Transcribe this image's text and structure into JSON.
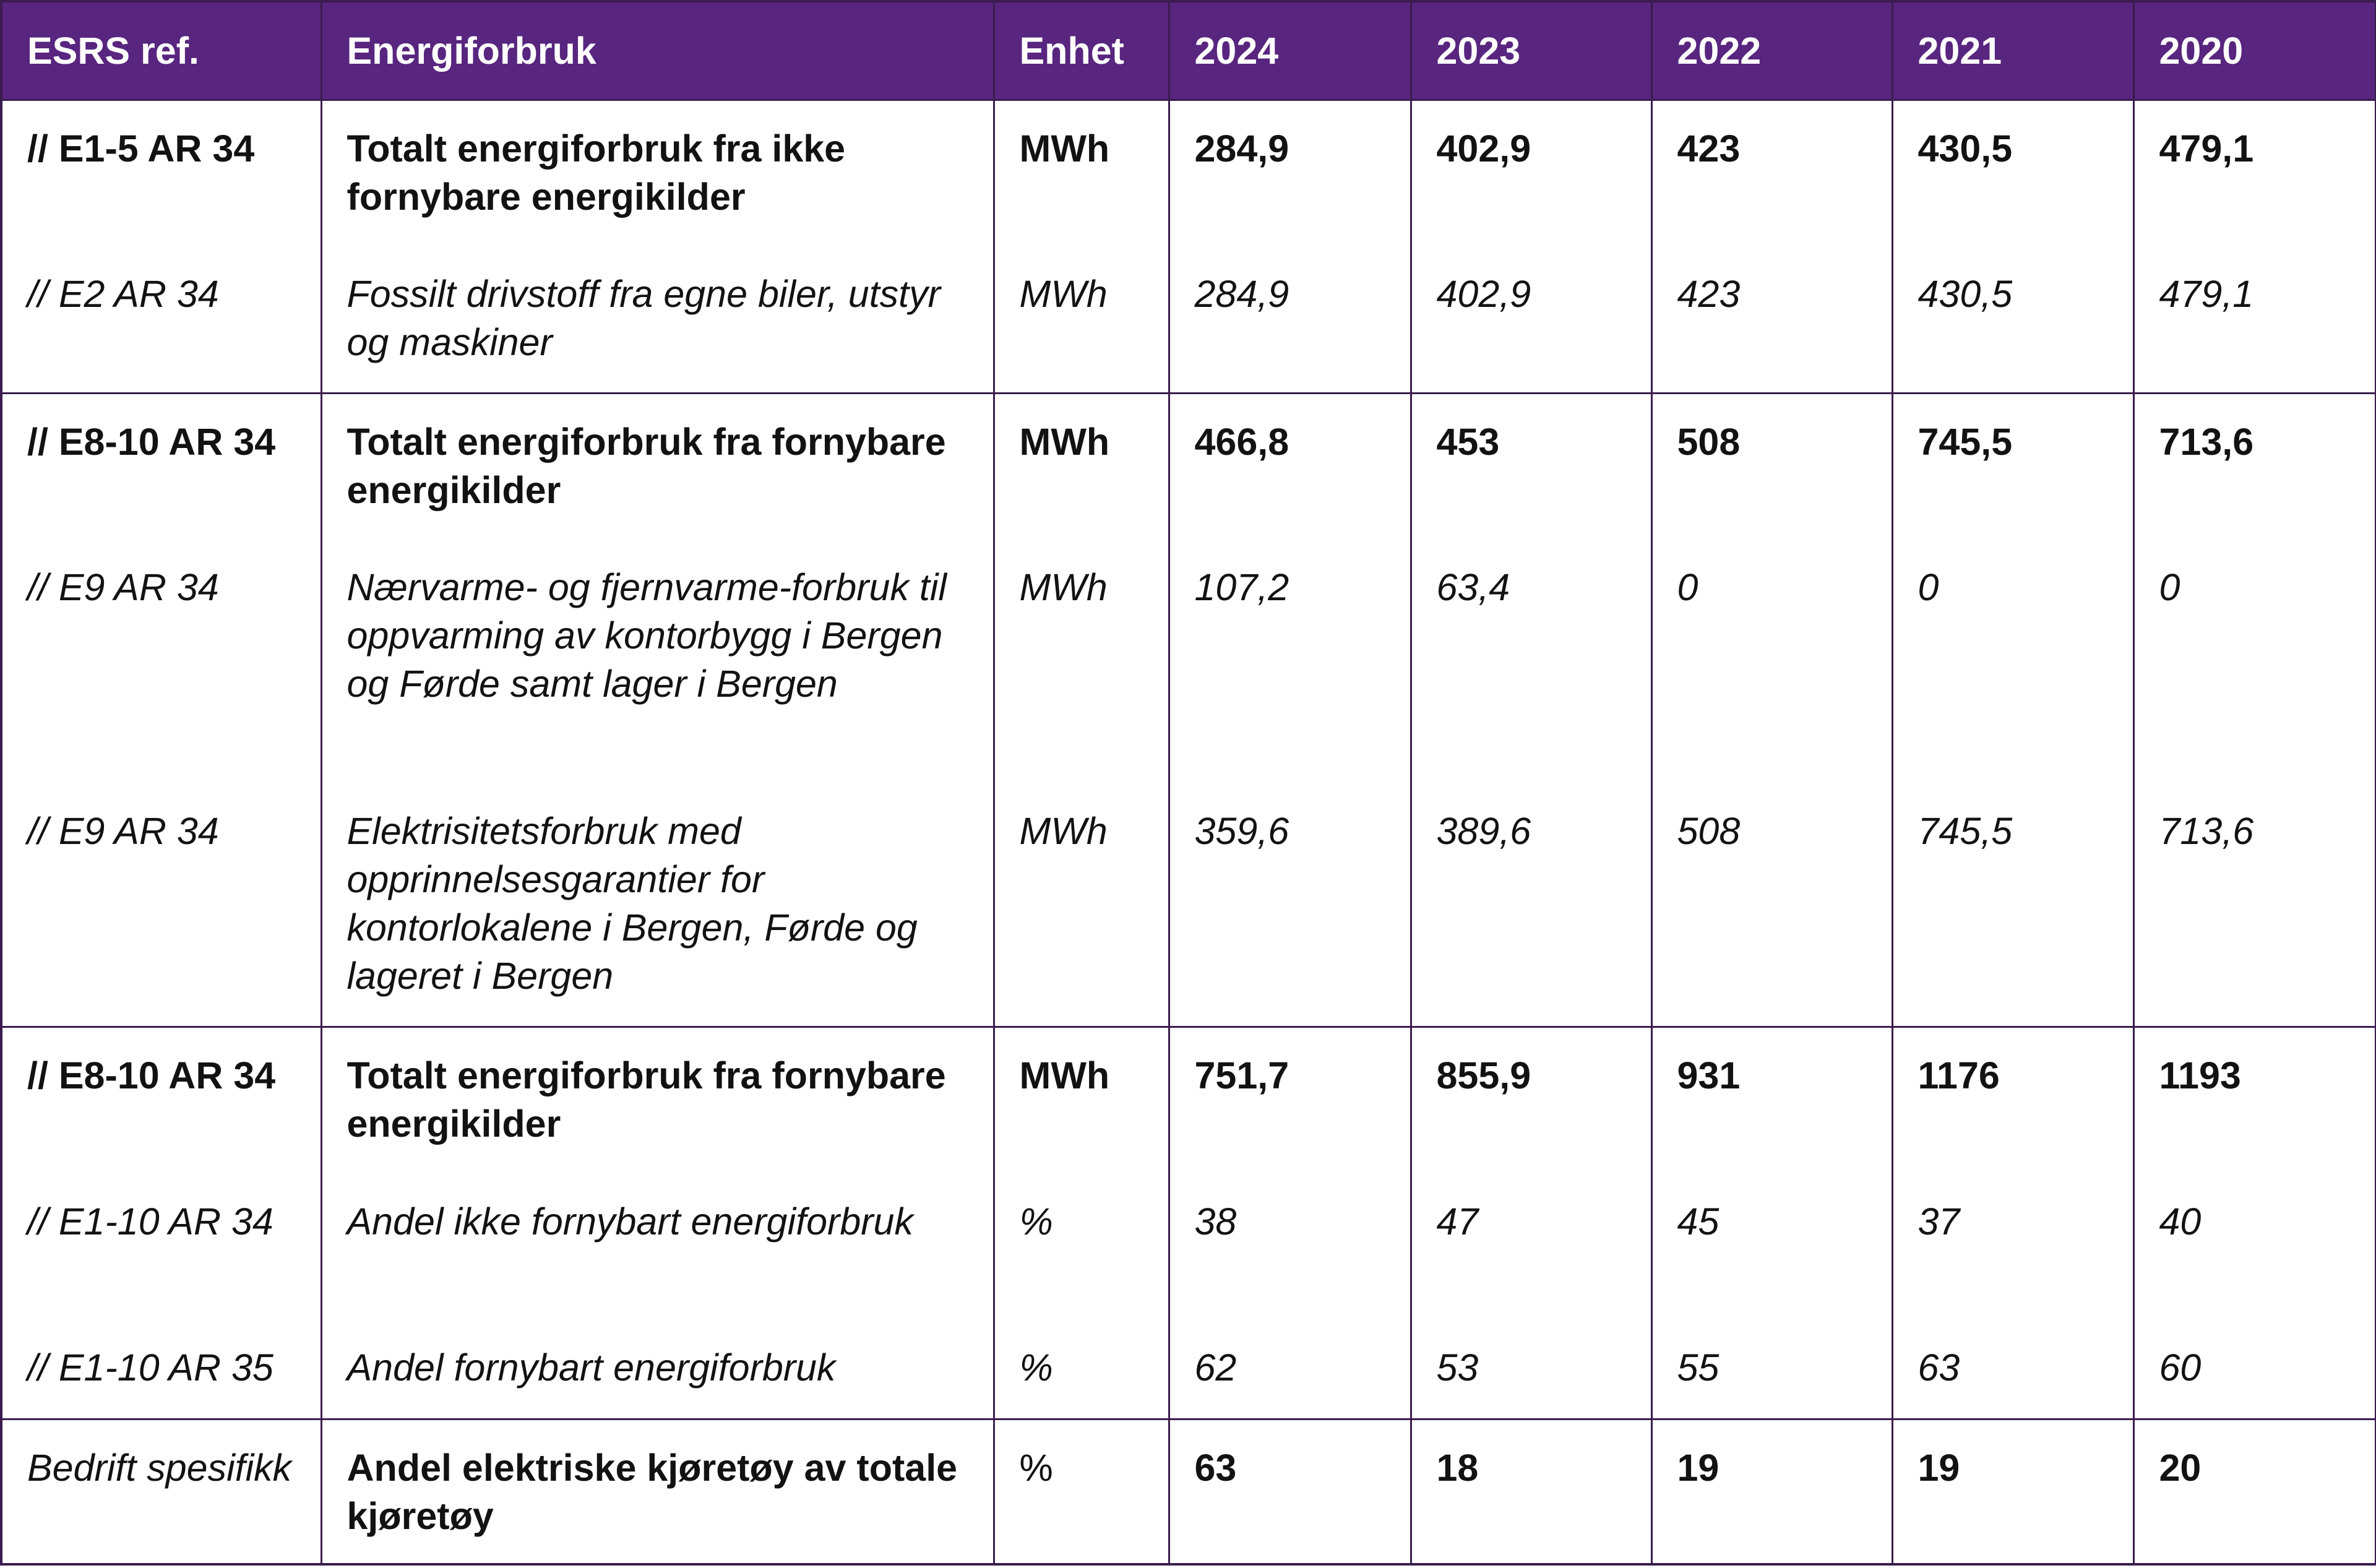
{
  "table": {
    "headers": [
      "ESRS ref.",
      "Energiforbruk",
      "Enhet",
      "2024",
      "2023",
      "2022",
      "2021",
      "2020"
    ],
    "rows": [
      {
        "ref": "// E1-5 AR 34",
        "label": "Totalt energiforbruk fra ikke fornybare energikilder",
        "unit": "MWh",
        "values": [
          "284,9",
          "402,9",
          "423",
          "430,5",
          "479,1"
        ],
        "style": "bold",
        "group_start": true
      },
      {
        "ref": "// E2 AR 34",
        "label": "Fossilt drivstoff fra egne biler, utstyr og maskiner",
        "unit": "MWh",
        "values": [
          "284,9",
          "402,9",
          "423",
          "430,5",
          "479,1"
        ],
        "style": "italic",
        "group_start": false
      },
      {
        "ref": "// E8-10 AR 34",
        "label": "Totalt energiforbruk fra fornybare energikilder",
        "unit": "MWh",
        "values": [
          "466,8",
          "453",
          "508",
          "745,5",
          "713,6"
        ],
        "style": "bold",
        "group_start": true
      },
      {
        "ref": "// E9 AR 34",
        "label": "Nærvarme- og fjernvarme-forbruk til oppvarming av kontorbygg i Bergen og Førde samt lager i Bergen",
        "unit": "MWh",
        "values": [
          "107,2",
          "63,4",
          "0",
          "0",
          "0"
        ],
        "style": "italic",
        "group_start": false
      },
      {
        "ref": "// E9 AR 34",
        "label": "Elektrisitetsforbruk med opprinnelsesgarantier for kontorlokalene i Bergen, Førde og lageret i Bergen",
        "unit": "MWh",
        "values": [
          "359,6",
          "389,6",
          "508",
          "745,5",
          "713,6"
        ],
        "style": "italic",
        "group_start": false
      },
      {
        "ref": "// E8-10 AR 34",
        "label": "Totalt energiforbruk fra fornybare energikilder",
        "unit": "MWh",
        "values": [
          "751,7",
          "855,9",
          "931",
          "1176",
          "1193"
        ],
        "style": "bold",
        "group_start": true
      },
      {
        "ref": "// E1-10 AR 34",
        "label": "Andel ikke fornybart energiforbruk",
        "unit": "%",
        "values": [
          "38",
          "47",
          "45",
          "37",
          "40"
        ],
        "style": "italic",
        "group_start": false
      },
      {
        "ref": "// E1-10 AR 35",
        "label": "Andel fornybart energiforbruk",
        "unit": "%",
        "values": [
          "62",
          "53",
          "55",
          "63",
          "60"
        ],
        "style": "italic",
        "group_start": false
      },
      {
        "ref": "Bedrift spesifikk",
        "label": "Andel elektriske kjøretøy av totale kjøretøy",
        "unit": "%",
        "values": [
          "63",
          "18",
          "19",
          "19",
          "20"
        ],
        "style": "mixed",
        "group_start": true
      }
    ]
  }
}
